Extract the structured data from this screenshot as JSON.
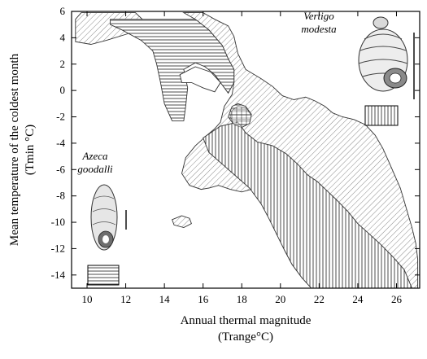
{
  "chart_data": {
    "type": "area",
    "xlabel": "Annual thermal magnitude",
    "xlabel_unit": "(Trange°C)",
    "ylabel": "Mean temperature of the coldest month",
    "ylabel_unit": "(Tmin °C)",
    "xlim": [
      9.2,
      27.2
    ],
    "ylim": [
      -15,
      6
    ],
    "x_ticks": [
      10,
      12,
      14,
      16,
      18,
      20,
      22,
      24,
      26
    ],
    "y_ticks": [
      6,
      4,
      2,
      0,
      -2,
      -4,
      -6,
      -8,
      -10,
      -12,
      -14
    ],
    "grid": false,
    "series": [
      {
        "name": "Vertigo modesta",
        "name_lines": [
          "Vertigo",
          "modesta"
        ],
        "pattern": "vertical-lines",
        "regions": [
          [
            [
              16.0,
              -3.6
            ],
            [
              16.9,
              -2.7
            ],
            [
              17.8,
              -2.4
            ],
            [
              18.2,
              -3.2
            ],
            [
              18.8,
              -3.9
            ],
            [
              19.6,
              -4.2
            ],
            [
              20.3,
              -4.8
            ],
            [
              20.9,
              -5.6
            ],
            [
              21.4,
              -6.4
            ],
            [
              21.9,
              -6.9
            ],
            [
              22.4,
              -7.6
            ],
            [
              22.9,
              -8.3
            ],
            [
              23.5,
              -9.2
            ],
            [
              24.0,
              -10.1
            ],
            [
              24.6,
              -10.9
            ],
            [
              25.2,
              -11.7
            ],
            [
              25.8,
              -12.6
            ],
            [
              26.4,
              -13.6
            ],
            [
              26.8,
              -15.0
            ],
            [
              21.6,
              -15.0
            ],
            [
              21.1,
              -14.2
            ],
            [
              20.6,
              -13.2
            ],
            [
              20.2,
              -12.1
            ],
            [
              19.8,
              -10.9
            ],
            [
              19.4,
              -9.7
            ],
            [
              19.0,
              -8.6
            ],
            [
              18.4,
              -7.4
            ],
            [
              17.7,
              -6.5
            ],
            [
              17.0,
              -5.6
            ],
            [
              16.3,
              -4.7
            ]
          ]
        ]
      },
      {
        "name": "Azeca goodalli",
        "name_lines": [
          "Azeca",
          "goodalli"
        ],
        "pattern": "horizontal-lines",
        "regions": [
          [
            [
              11.2,
              5.4
            ],
            [
              15.6,
              5.4
            ],
            [
              16.3,
              4.6
            ],
            [
              17.0,
              3.4
            ],
            [
              17.3,
              2.4
            ],
            [
              17.6,
              1.6
            ],
            [
              17.6,
              0.6
            ],
            [
              17.3,
              -0.2
            ],
            [
              17.0,
              0.4
            ],
            [
              16.6,
              1.2
            ],
            [
              16.1,
              1.8
            ],
            [
              15.6,
              2.1
            ],
            [
              15.0,
              1.6
            ],
            [
              15.2,
              0.2
            ],
            [
              15.1,
              -1.2
            ],
            [
              15.0,
              -2.3
            ],
            [
              14.4,
              -2.3
            ],
            [
              14.0,
              -1.0
            ],
            [
              13.8,
              0.6
            ],
            [
              13.6,
              2.0
            ],
            [
              13.4,
              3.0
            ],
            [
              12.8,
              3.8
            ],
            [
              11.8,
              4.6
            ],
            [
              11.2,
              5.0
            ]
          ],
          [
            [
              17.5,
              -1.2
            ],
            [
              17.8,
              -1.0
            ],
            [
              18.2,
              -1.2
            ],
            [
              18.5,
              -1.8
            ],
            [
              18.4,
              -2.5
            ],
            [
              18.0,
              -2.8
            ],
            [
              17.6,
              -2.6
            ],
            [
              17.3,
              -2.0
            ]
          ]
        ]
      },
      {
        "name": "",
        "pattern": "diagonal-lines",
        "regions": [
          [
            [
              9.4,
              5.4
            ],
            [
              9.7,
              5.9
            ],
            [
              12.5,
              5.9
            ],
            [
              13.0,
              5.2
            ],
            [
              12.1,
              4.3
            ],
            [
              11.0,
              3.8
            ],
            [
              10.2,
              3.5
            ],
            [
              9.4,
              3.7
            ]
          ],
          [
            [
              15.0,
              5.9
            ],
            [
              16.0,
              5.9
            ],
            [
              16.6,
              5.4
            ],
            [
              17.3,
              4.9
            ],
            [
              17.6,
              4.1
            ],
            [
              17.8,
              2.8
            ],
            [
              18.2,
              1.6
            ],
            [
              19.0,
              0.9
            ],
            [
              19.6,
              0.3
            ],
            [
              20.1,
              -0.4
            ],
            [
              20.7,
              -0.7
            ],
            [
              21.3,
              -0.5
            ],
            [
              21.8,
              -0.8
            ],
            [
              22.3,
              -1.2
            ],
            [
              22.7,
              -1.7
            ],
            [
              23.2,
              -2.0
            ],
            [
              23.8,
              -2.2
            ],
            [
              24.4,
              -2.6
            ],
            [
              24.9,
              -3.4
            ],
            [
              25.3,
              -4.4
            ],
            [
              25.6,
              -5.4
            ],
            [
              25.9,
              -6.4
            ],
            [
              26.2,
              -7.4
            ],
            [
              26.4,
              -8.4
            ],
            [
              26.6,
              -9.4
            ],
            [
              26.8,
              -10.4
            ],
            [
              27.0,
              -11.6
            ],
            [
              27.1,
              -12.8
            ],
            [
              27.1,
              -15.0
            ],
            [
              21.6,
              -15.0
            ],
            [
              21.1,
              -14.2
            ],
            [
              20.6,
              -13.2
            ],
            [
              20.2,
              -12.1
            ],
            [
              19.9,
              -10.8
            ],
            [
              19.7,
              -9.6
            ],
            [
              19.4,
              -8.6
            ],
            [
              19.2,
              -7.6
            ],
            [
              19.0,
              -7.2
            ],
            [
              18.5,
              -7.5
            ],
            [
              18.0,
              -7.7
            ],
            [
              17.4,
              -7.5
            ],
            [
              16.8,
              -7.2
            ],
            [
              16.3,
              -7.4
            ],
            [
              15.9,
              -7.5
            ],
            [
              15.3,
              -7.2
            ],
            [
              14.9,
              -6.3
            ],
            [
              15.1,
              -5.1
            ],
            [
              15.6,
              -4.2
            ],
            [
              16.2,
              -3.4
            ],
            [
              16.6,
              -2.9
            ],
            [
              16.9,
              -2.4
            ],
            [
              17.1,
              -1.2
            ],
            [
              17.5,
              -0.3
            ],
            [
              17.6,
              0.6
            ],
            [
              17.6,
              1.6
            ],
            [
              17.3,
              2.4
            ],
            [
              17.0,
              3.4
            ],
            [
              16.3,
              4.6
            ],
            [
              15.6,
              5.4
            ]
          ],
          [
            [
              14.4,
              -9.8
            ],
            [
              14.9,
              -9.5
            ],
            [
              15.3,
              -9.7
            ],
            [
              15.4,
              -10.1
            ],
            [
              15.0,
              -10.4
            ],
            [
              14.5,
              -10.2
            ]
          ]
        ]
      }
    ],
    "empty_holes": [
      [
        [
          14.8,
          1.2
        ],
        [
          15.6,
          1.8
        ],
        [
          16.4,
          1.4
        ],
        [
          16.9,
          0.6
        ],
        [
          16.6,
          -0.1
        ],
        [
          16.0,
          0.2
        ],
        [
          15.4,
          0.6
        ],
        [
          14.9,
          0.6
        ]
      ]
    ]
  }
}
